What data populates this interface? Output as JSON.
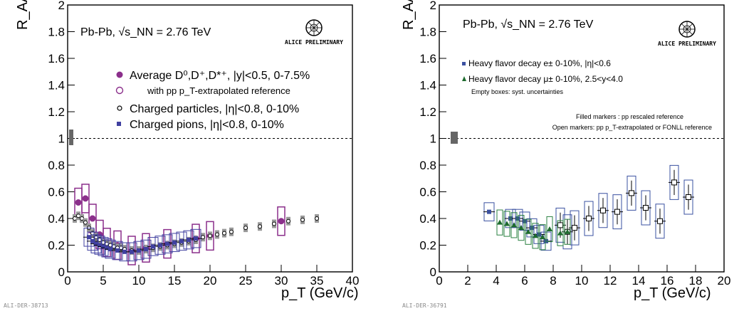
{
  "chart_data": [
    {
      "type": "scatter",
      "xlim": [
        0,
        40
      ],
      "ylim": [
        0,
        2
      ],
      "xticks": [
        0,
        5,
        10,
        15,
        20,
        25,
        30,
        35,
        40
      ],
      "yticks": [
        0,
        0.2,
        0.4,
        0.6,
        0.8,
        1,
        1.2,
        1.4,
        1.6,
        1.8,
        2
      ],
      "xlabel": "p_T (GeV/c)",
      "ylabel": "R_AA",
      "system_label": "Pb-Pb, √s_NN = 2.76 TeV",
      "logo_label": "ALICE PRELIMINARY",
      "footer_id": "ALI-DER-38713",
      "grid": false,
      "reference_line": 1,
      "legend_position": "top-right",
      "legend": [
        "Average D⁰,D⁺,D*⁺, |y|<0.5, 0-7.5%",
        "with pp p_T-extrapolated reference",
        "Charged particles, |η|<0.8, 0-10%",
        "Charged pions, |η|<0.8, 0-10%"
      ],
      "series": [
        {
          "name": "Average D⁰,D⁺,D*⁺ (pp p_T-extrapolated reference)",
          "marker": "circle-filled",
          "color": "#8b2f8b",
          "x": [
            1.5,
            2.5,
            3.5,
            4.5,
            5.5,
            7,
            9,
            11,
            14,
            18,
            20,
            30
          ],
          "y": [
            0.52,
            0.55,
            0.4,
            0.28,
            0.22,
            0.2,
            0.16,
            0.18,
            0.21,
            0.25,
            0.27,
            0.38
          ]
        },
        {
          "name": "Charged particles",
          "marker": "circle-open",
          "color": "#000000",
          "x": [
            1,
            1.5,
            2,
            2.5,
            3,
            3.5,
            4,
            4.5,
            5,
            5.5,
            6,
            6.5,
            7,
            7.5,
            8,
            9,
            10,
            11,
            12,
            13,
            14,
            15,
            16,
            17,
            18,
            19,
            20,
            21,
            22,
            23,
            25,
            27,
            29,
            31,
            33,
            35
          ],
          "y": [
            0.4,
            0.42,
            0.4,
            0.37,
            0.33,
            0.29,
            0.26,
            0.24,
            0.22,
            0.21,
            0.2,
            0.19,
            0.18,
            0.18,
            0.17,
            0.16,
            0.16,
            0.17,
            0.18,
            0.19,
            0.2,
            0.21,
            0.22,
            0.23,
            0.24,
            0.26,
            0.27,
            0.28,
            0.29,
            0.3,
            0.33,
            0.34,
            0.36,
            0.38,
            0.39,
            0.4
          ]
        },
        {
          "name": "Charged pions",
          "marker": "square-filled",
          "color": "#4040a0",
          "x": [
            3,
            3.5,
            4,
            4.5,
            5,
            5.5,
            6,
            7,
            8,
            9,
            10,
            11,
            12,
            13,
            14,
            15,
            16,
            17,
            18
          ],
          "y": [
            0.26,
            0.23,
            0.21,
            0.2,
            0.19,
            0.18,
            0.17,
            0.16,
            0.15,
            0.15,
            0.16,
            0.17,
            0.19,
            0.2,
            0.21,
            0.22,
            0.23,
            0.24,
            0.25
          ]
        }
      ]
    },
    {
      "type": "scatter",
      "xlim": [
        0,
        20
      ],
      "ylim": [
        0,
        2
      ],
      "xticks": [
        0,
        2,
        4,
        6,
        8,
        10,
        12,
        14,
        16,
        18,
        20
      ],
      "yticks": [
        0,
        0.2,
        0.4,
        0.6,
        0.8,
        1,
        1.2,
        1.4,
        1.6,
        1.8,
        2
      ],
      "xlabel": "p_T (GeV/c)",
      "ylabel": "R_AA",
      "system_label": "Pb-Pb, √s_NN = 2.76 TeV",
      "logo_label": "ALICE PRELIMINARY",
      "footer_id": "ALI-DER-36791",
      "grid": false,
      "reference_line": 1,
      "legend_position": "top-left",
      "legend": [
        "Heavy flavor decay e± 0-10%, |η|<0.6",
        "Heavy flavor decay μ± 0-10%, 2.5<y<4.0",
        "Empty boxes: syst. uncertainties",
        "Filled markers : pp rescaled reference",
        "Open markers: pp p_T-extrapolated or FONLL reference"
      ],
      "series": [
        {
          "name": "Heavy flavor decay e± (filled)",
          "marker": "square-filled",
          "color": "#3a50a0",
          "x": [
            3.5,
            5,
            5.5,
            6,
            6.5,
            7,
            7.5
          ],
          "y": [
            0.45,
            0.4,
            0.4,
            0.38,
            0.33,
            0.28,
            0.23
          ]
        },
        {
          "name": "Heavy flavor decay e± (open)",
          "marker": "square-open",
          "color": "#000000",
          "x": [
            8.5,
            9,
            9.5,
            10.5,
            11.5,
            12.5,
            13.5,
            14.5,
            15.5,
            16.5,
            17.5
          ],
          "y": [
            0.35,
            0.3,
            0.33,
            0.4,
            0.46,
            0.45,
            0.59,
            0.48,
            0.38,
            0.67,
            0.56
          ]
        },
        {
          "name": "Heavy flavor decay μ±",
          "marker": "triangle-filled",
          "color": "#1e6b2e",
          "x": [
            4.25,
            4.75,
            5.25,
            5.75,
            6.25,
            6.75,
            7.25,
            7.75,
            8.5,
            9
          ],
          "y": [
            0.37,
            0.36,
            0.35,
            0.33,
            0.3,
            0.27,
            0.26,
            0.32,
            0.29,
            0.3
          ]
        }
      ]
    }
  ]
}
